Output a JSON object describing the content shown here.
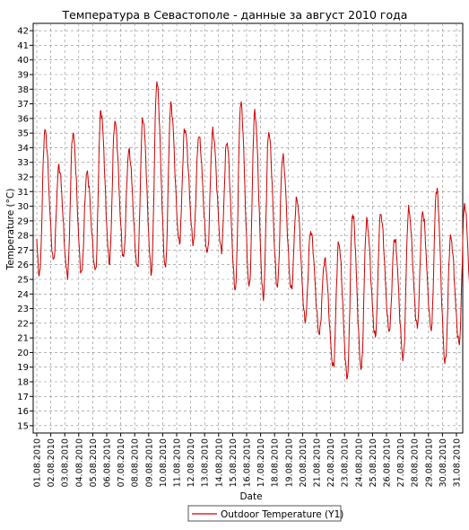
{
  "chart_data": {
    "type": "line",
    "title": "Температура в Севастополе - данные за август 2010 года",
    "xlabel": "Date",
    "ylabel": "Temperature (°C)",
    "ylim": [
      14.5,
      42.5
    ],
    "yticks": [
      15,
      16,
      17,
      18,
      19,
      20,
      21,
      22,
      23,
      24,
      25,
      26,
      27,
      28,
      29,
      30,
      31,
      32,
      33,
      34,
      35,
      36,
      37,
      38,
      39,
      40,
      41,
      42
    ],
    "x_tick_labels": [
      "01.08.2010",
      "02.08.2010",
      "03.08.2010",
      "04.08.2010",
      "05.08.2010",
      "06.08.2010",
      "07.08.2010",
      "08.08.2010",
      "09.08.2010",
      "10.08.2010",
      "11.08.2010",
      "12.08.2010",
      "13.08.2010",
      "14.08.2010",
      "15.08.2010",
      "16.08.2010",
      "17.08.2010",
      "18.08.2010",
      "19.08.2010",
      "20.08.2010",
      "21.08.2010",
      "22.08.2010",
      "23.08.2010",
      "24.08.2010",
      "25.08.2010",
      "26.08.2010",
      "27.08.2010",
      "28.08.2010",
      "29.08.2010",
      "30.08.2010",
      "31.08.2010"
    ],
    "x_range": [
      "2010-08-01",
      "2010-09-01"
    ],
    "grid": true,
    "legend_position": "bottom-center",
    "series": [
      {
        "name": "Outdoor Temperature (Y1)",
        "color": "#cc0000",
        "daily_points": [
          {
            "date": "2010-08-01",
            "min": 25.3,
            "max": 35.2
          },
          {
            "date": "2010-08-02",
            "min": 26.3,
            "max": 32.7
          },
          {
            "date": "2010-08-03",
            "min": 25.3,
            "max": 35.0
          },
          {
            "date": "2010-08-04",
            "min": 25.4,
            "max": 32.3
          },
          {
            "date": "2010-08-05",
            "min": 25.6,
            "max": 36.5
          },
          {
            "date": "2010-08-06",
            "min": 26.2,
            "max": 35.8
          },
          {
            "date": "2010-08-07",
            "min": 26.5,
            "max": 33.8
          },
          {
            "date": "2010-08-08",
            "min": 25.8,
            "max": 36.0
          },
          {
            "date": "2010-08-09",
            "min": 25.5,
            "max": 38.5
          },
          {
            "date": "2010-08-10",
            "min": 25.8,
            "max": 36.9
          },
          {
            "date": "2010-08-11",
            "min": 27.5,
            "max": 35.3
          },
          {
            "date": "2010-08-12",
            "min": 27.5,
            "max": 34.8
          },
          {
            "date": "2010-08-13",
            "min": 26.8,
            "max": 35.1
          },
          {
            "date": "2010-08-14",
            "min": 27.0,
            "max": 34.4
          },
          {
            "date": "2010-08-15",
            "min": 24.3,
            "max": 37.1
          },
          {
            "date": "2010-08-16",
            "min": 24.5,
            "max": 36.4
          },
          {
            "date": "2010-08-17",
            "min": 23.8,
            "max": 35.1
          },
          {
            "date": "2010-08-18",
            "min": 24.5,
            "max": 33.4
          },
          {
            "date": "2010-08-19",
            "min": 24.3,
            "max": 30.5
          },
          {
            "date": "2010-08-20",
            "min": 22.2,
            "max": 28.3
          },
          {
            "date": "2010-08-21",
            "min": 21.3,
            "max": 26.3
          },
          {
            "date": "2010-08-22",
            "min": 19.0,
            "max": 27.5
          },
          {
            "date": "2010-08-23",
            "min": 18.3,
            "max": 29.5
          },
          {
            "date": "2010-08-24",
            "min": 18.9,
            "max": 29.0
          },
          {
            "date": "2010-08-25",
            "min": 21.1,
            "max": 29.5
          },
          {
            "date": "2010-08-26",
            "min": 21.5,
            "max": 27.8
          },
          {
            "date": "2010-08-27",
            "min": 19.6,
            "max": 29.8
          },
          {
            "date": "2010-08-28",
            "min": 21.8,
            "max": 29.6
          },
          {
            "date": "2010-08-29",
            "min": 21.6,
            "max": 31.2
          },
          {
            "date": "2010-08-30",
            "min": 19.3,
            "max": 27.9
          },
          {
            "date": "2010-08-31",
            "min": 20.6,
            "max": 30.1
          }
        ]
      }
    ]
  }
}
